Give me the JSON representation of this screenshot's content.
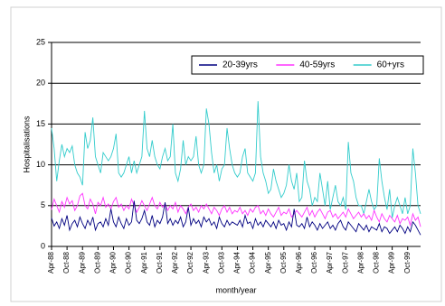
{
  "chart_data": {
    "type": "line",
    "ylabel": "Hospitalisations",
    "xlabel": "month/year",
    "categories": [
      "Apr-88",
      null,
      null,
      null,
      null,
      null,
      "Oct-88",
      null,
      null,
      null,
      null,
      null,
      "Apr-89",
      null,
      null,
      null,
      null,
      null,
      "Oct-89",
      null,
      null,
      null,
      null,
      null,
      "Apr-90",
      null,
      null,
      null,
      null,
      null,
      "Oct-90",
      null,
      null,
      null,
      null,
      null,
      "Apr-91",
      null,
      null,
      null,
      null,
      null,
      "Oct-91",
      null,
      null,
      null,
      null,
      null,
      "Apr-92",
      null,
      null,
      null,
      null,
      null,
      "Oct-92",
      null,
      null,
      null,
      null,
      null,
      "Apr-93",
      null,
      null,
      null,
      null,
      null,
      "Oct-93",
      null,
      null,
      null,
      null,
      null,
      "Apr-94",
      null,
      null,
      null,
      null,
      null,
      "Oct-94",
      null,
      null,
      null,
      null,
      null,
      "Apr-95",
      null,
      null,
      null,
      null,
      null,
      "Oct-95",
      null,
      null,
      null,
      null,
      null,
      "Apr-96",
      null,
      null,
      null,
      null,
      null,
      "Oct-96",
      null,
      null,
      null,
      null,
      null,
      "Apr-97",
      null,
      null,
      null,
      null,
      null,
      "Oct-97",
      null,
      null,
      null,
      null,
      null,
      "Apr-98",
      null,
      null,
      null,
      null,
      null,
      "Oct-98",
      null,
      null,
      null,
      null,
      null,
      "Apr-99",
      null,
      null,
      null,
      null,
      null,
      "Oct-99",
      null,
      null,
      null,
      null,
      null
    ],
    "series": [
      {
        "name": "20-39yrs",
        "color": "#000080",
        "values": [
          3.5,
          2.5,
          3,
          2.2,
          3.4,
          2.6,
          3.8,
          2,
          2.8,
          3.2,
          2.4,
          3.6,
          2.8,
          2.2,
          3.2,
          2.6,
          3.6,
          2,
          2.8,
          3,
          2.4,
          3.4,
          2.6,
          4.6,
          3,
          2.4,
          3.6,
          2.8,
          2.2,
          3.4,
          2.6,
          3,
          5.6,
          3.2,
          2.8,
          3.4,
          4.4,
          3,
          2.6,
          3.8,
          2.4,
          3.2,
          2.8,
          3.6,
          5.4,
          2.8,
          3.4,
          2.6,
          3.2,
          2.8,
          3.6,
          2.4,
          3,
          4.8,
          2.6,
          3.4,
          2.8,
          3.2,
          2.4,
          3.6,
          3,
          3.4,
          2.6,
          3,
          2.2,
          3.6,
          2.8,
          2.4,
          3.2,
          2.6,
          3,
          2.8,
          2.6,
          3.2,
          2.4,
          3.8,
          2.8,
          3,
          2.2,
          3.4,
          2.6,
          3,
          2.4,
          3.2,
          2.8,
          2.4,
          3,
          2.2,
          3.2,
          2.6,
          2.8,
          2,
          3,
          2.4,
          4.6,
          2.6,
          2.4,
          2.8,
          2.2,
          3.6,
          2.4,
          3,
          2.6,
          2,
          2.8,
          2.2,
          2.6,
          3,
          2.2,
          2.6,
          2,
          2.8,
          3.2,
          2.4,
          2,
          3,
          2.6,
          2.2,
          1.8,
          2.8,
          2.4,
          2,
          2.6,
          1.8,
          2.4,
          2.2,
          2,
          2.8,
          1.8,
          2.4,
          2.2,
          1.6,
          2,
          2.4,
          1.8,
          2.6,
          2.2,
          1.6,
          2.4,
          1.8,
          3,
          2.6,
          2,
          1.4
        ]
      },
      {
        "name": "40-59yrs",
        "color": "#ff33ff",
        "values": [
          4.5,
          5.8,
          5,
          4.2,
          5.5,
          4.8,
          6,
          5.2,
          5.6,
          4.4,
          5,
          6.2,
          6.5,
          5,
          4.6,
          5.8,
          5.2,
          4,
          5.4,
          5,
          6,
          4.8,
          5.2,
          4.6,
          5.5,
          6,
          4.8,
          5.2,
          4.4,
          5,
          4.6,
          5.8,
          5,
          4.2,
          4.8,
          5.6,
          5,
          4.4,
          5.2,
          6,
          5,
          4.6,
          5.4,
          4.8,
          5.2,
          4.4,
          5,
          4.6,
          5.4,
          4.2,
          5,
          4.6,
          4,
          4.8,
          5.2,
          4.4,
          4.8,
          4.2,
          5,
          4.6,
          5.2,
          4.6,
          4,
          4.8,
          4.4,
          3.8,
          4.6,
          5,
          4.2,
          4.8,
          4,
          4.4,
          4.2,
          4.8,
          4,
          4.4,
          3.8,
          4.6,
          4.2,
          4.8,
          5,
          4,
          4.4,
          3.8,
          4.6,
          4,
          3.6,
          4.2,
          4.8,
          3.8,
          4.2,
          4,
          4.6,
          3.6,
          4,
          4.4,
          4,
          3.6,
          4.2,
          4.8,
          3.8,
          4.4,
          3.6,
          4.2,
          4.6,
          4,
          3.4,
          4.2,
          4.4,
          3.6,
          4,
          3.4,
          3.8,
          4.2,
          3.6,
          4.6,
          4,
          3.4,
          3.8,
          4.2,
          3.6,
          4,
          3.4,
          3.8,
          3.2,
          4.4,
          3.6,
          3,
          4,
          3.4,
          3,
          3.8,
          3.4,
          3,
          3.8,
          2.8,
          3.4,
          3.2,
          3.6,
          2.6,
          4,
          3.2,
          3.6,
          2.4
        ]
      },
      {
        "name": "60+yrs",
        "color": "#33cccc",
        "values": [
          14.5,
          12,
          8,
          10.5,
          12.5,
          11,
          12,
          11.5,
          12.3,
          10,
          9,
          8.5,
          7.5,
          14,
          12,
          13,
          15.8,
          11,
          10,
          9,
          11.5,
          11,
          10.5,
          11,
          12,
          13.8,
          9,
          8.5,
          9,
          10,
          11,
          9,
          10.5,
          9,
          10,
          11,
          16.6,
          12,
          11,
          13,
          11,
          10,
          9.5,
          11,
          12,
          10.5,
          11,
          15,
          9,
          8,
          9.5,
          13,
          10,
          11,
          10.5,
          11,
          13.5,
          10,
          9,
          10,
          16.9,
          15,
          11.5,
          9,
          10,
          8,
          9.5,
          10,
          14.5,
          12,
          10,
          9,
          8.5,
          9,
          11,
          12,
          9,
          8.5,
          8,
          9,
          17.8,
          11,
          9,
          8,
          6.5,
          7,
          9.5,
          8,
          7,
          6,
          6.5,
          7.5,
          10,
          8,
          7,
          9,
          5.5,
          6,
          10.5,
          8,
          7,
          5,
          6,
          5.5,
          9,
          7,
          5,
          8,
          4.5,
          6,
          7.5,
          5.5,
          5,
          6,
          4.5,
          12.8,
          9,
          8,
          6,
          5,
          5,
          4,
          5.5,
          7,
          5.5,
          4.5,
          5,
          10.8,
          8,
          6,
          4.5,
          7,
          3.5,
          5,
          6,
          5,
          4,
          6,
          4,
          5,
          12,
          9,
          5,
          4
        ]
      }
    ],
    "ylim": [
      0,
      25
    ],
    "yticks": [
      0,
      5,
      10,
      15,
      20,
      25
    ],
    "grid": true,
    "legend": "top-right"
  }
}
